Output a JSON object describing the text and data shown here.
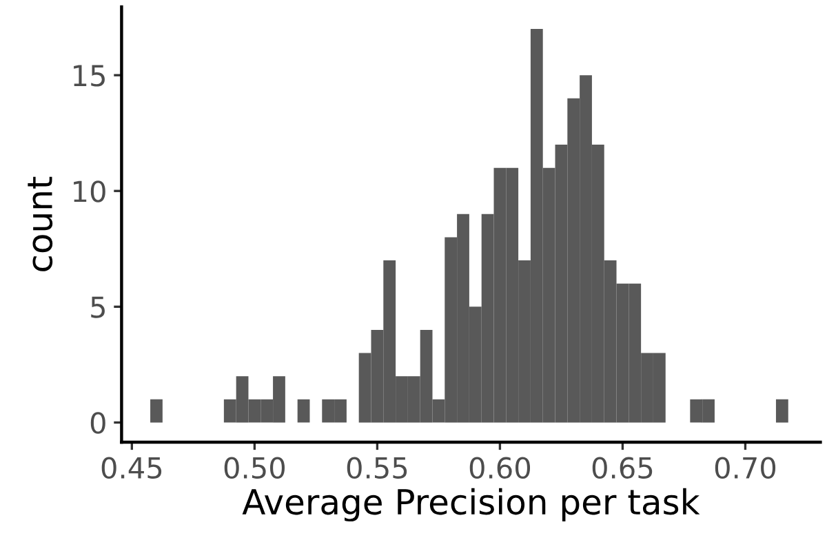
{
  "chart_data": {
    "type": "histogram",
    "xlabel": "Average Precision per task",
    "ylabel": "count",
    "color": "#595959",
    "bins": [
      0.4575,
      0.4625,
      0.4675,
      0.4725,
      0.4775,
      0.4825,
      0.4875,
      0.4925,
      0.4975,
      0.5025,
      0.5075,
      0.5125,
      0.5175,
      0.5225,
      0.5275,
      0.5325,
      0.5375,
      0.5425,
      0.5475,
      0.5525,
      0.5575,
      0.5625,
      0.5675,
      0.5725,
      0.5775,
      0.5825,
      0.5875,
      0.5925,
      0.5975,
      0.6025,
      0.6075,
      0.6125,
      0.6175,
      0.6225,
      0.6275,
      0.6325,
      0.6375,
      0.6425,
      0.6475,
      0.6525,
      0.6575,
      0.6625,
      0.6675,
      0.6725,
      0.6775,
      0.6825,
      0.6875,
      0.6925,
      0.6975,
      0.7025,
      0.7075,
      0.7125,
      0.7175
    ],
    "values": [
      1,
      0,
      0,
      0,
      0,
      0,
      1,
      2,
      1,
      1,
      2,
      0,
      1,
      0,
      1,
      1,
      0,
      3,
      4,
      7,
      2,
      2,
      4,
      1,
      8,
      9,
      5,
      9,
      11,
      11,
      7,
      17,
      11,
      12,
      14,
      15,
      12,
      7,
      6,
      6,
      3,
      3,
      0,
      0,
      1,
      1,
      0,
      0,
      0,
      0,
      0,
      1
    ],
    "xlim": [
      0.4458,
      0.7306
    ],
    "ylim": [
      -0.85,
      17.95
    ],
    "xticks": [
      {
        "value": 0.45,
        "label": "0.45"
      },
      {
        "value": 0.5,
        "label": "0.50"
      },
      {
        "value": 0.55,
        "label": "0.55"
      },
      {
        "value": 0.6,
        "label": "0.60"
      },
      {
        "value": 0.65,
        "label": "0.65"
      },
      {
        "value": 0.7,
        "label": "0.70"
      }
    ],
    "yticks": [
      0,
      5,
      10,
      15
    ],
    "grid": false
  }
}
